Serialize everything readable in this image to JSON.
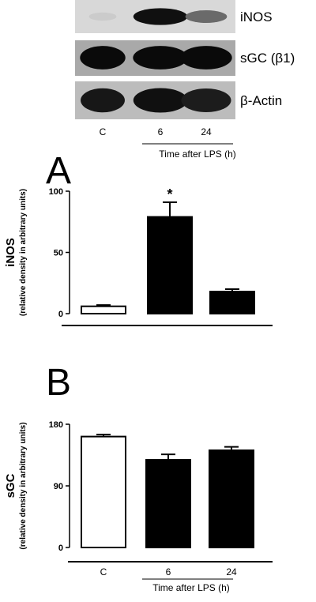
{
  "blot": {
    "rows": [
      {
        "label": "iNOS",
        "band_intensity": [
          0.12,
          0.95,
          0.55
        ]
      },
      {
        "label": "sGC (β1)",
        "band_intensity": [
          0.98,
          0.98,
          0.98
        ]
      },
      {
        "label": "β-Actin",
        "band_intensity": [
          0.92,
          0.95,
          0.9
        ]
      }
    ],
    "lanes": [
      "C",
      "6",
      "24"
    ],
    "group_label": "Time after LPS (h)"
  },
  "chart_data": [
    {
      "type": "bar",
      "panel": "A",
      "categories": [
        "C",
        "6",
        "24"
      ],
      "values": [
        6,
        79,
        18
      ],
      "errors": [
        1,
        12,
        2
      ],
      "fills": [
        "#ffffff",
        "#000000",
        "#000000"
      ],
      "significance": [
        "",
        "*",
        ""
      ],
      "ylabel": "iNOS",
      "ylabel_sub": "(relative density in arbitrary units)",
      "ylim": [
        0,
        100
      ],
      "yticks": [
        0,
        50,
        100
      ],
      "grid": false
    },
    {
      "type": "bar",
      "panel": "B",
      "categories": [
        "C",
        "6",
        "24"
      ],
      "values": [
        162,
        128,
        142
      ],
      "errors": [
        3,
        8,
        5
      ],
      "fills": [
        "#ffffff",
        "#000000",
        "#000000"
      ],
      "significance": [
        "",
        "",
        ""
      ],
      "ylabel": "sGC",
      "ylabel_sub": "(relative density in arbitrary units)",
      "ylim": [
        0,
        180
      ],
      "yticks": [
        0,
        90,
        180
      ],
      "grid": false,
      "xgroup_label": "Time after LPS (h)"
    }
  ]
}
